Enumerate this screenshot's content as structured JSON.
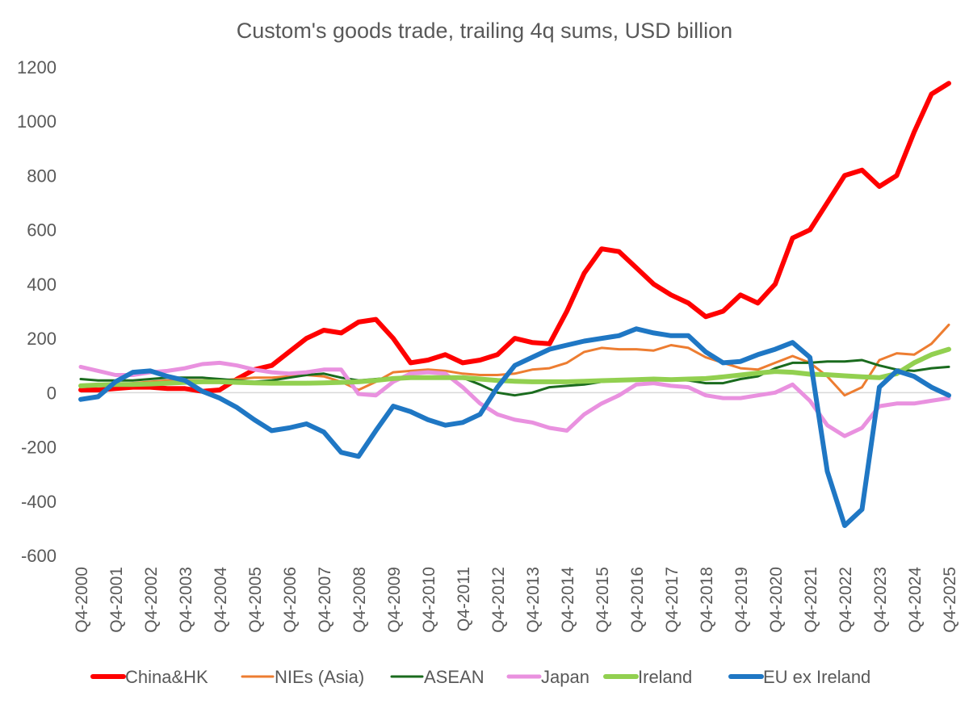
{
  "chart_data": {
    "type": "line",
    "title": "Custom's goods trade, trailing 4q sums, USD billion",
    "xlabel": "",
    "ylabel": "",
    "ylim": [
      -600,
      1200
    ],
    "y_ticks": [
      "-600",
      "-400",
      "-200",
      "0",
      "200",
      "400",
      "600",
      "800",
      "1000",
      "1200"
    ],
    "x_tick_labels": [
      "Q4-2000",
      "Q4-2001",
      "Q4-2002",
      "Q4-2003",
      "Q4-2004",
      "Q4-2005",
      "Q4-2006",
      "Q4-2007",
      "Q4-2008",
      "Q4-2009",
      "Q4-2010",
      "Q4-2011",
      "Q4-2012",
      "Q4-2013",
      "Q4-2014",
      "Q4-2015",
      "Q4-2016",
      "Q4-2017",
      "Q4-2018",
      "Q4-2019",
      "Q4-2020",
      "Q4-2021",
      "Q4-2022",
      "Q4-2023",
      "Q4-2024",
      "Q4-2025"
    ],
    "grid": false,
    "legend_position": "bottom",
    "x": [
      "Q4-2000",
      "Q2-2001",
      "Q4-2001",
      "Q2-2002",
      "Q4-2002",
      "Q2-2003",
      "Q4-2003",
      "Q2-2004",
      "Q4-2004",
      "Q2-2005",
      "Q4-2005",
      "Q2-2006",
      "Q4-2006",
      "Q2-2007",
      "Q4-2007",
      "Q2-2008",
      "Q4-2008",
      "Q2-2009",
      "Q4-2009",
      "Q2-2010",
      "Q4-2010",
      "Q2-2011",
      "Q4-2011",
      "Q2-2012",
      "Q4-2012",
      "Q2-2013",
      "Q4-2013",
      "Q2-2014",
      "Q4-2014",
      "Q2-2015",
      "Q4-2015",
      "Q2-2016",
      "Q4-2016",
      "Q2-2017",
      "Q4-2017",
      "Q2-2018",
      "Q4-2018",
      "Q2-2019",
      "Q4-2019",
      "Q2-2020",
      "Q4-2020",
      "Q2-2021",
      "Q4-2021",
      "Q2-2022",
      "Q4-2022",
      "Q2-2023",
      "Q4-2023",
      "Q2-2024",
      "Q4-2024",
      "Q2-2025",
      "Q4-2025"
    ],
    "series": [
      {
        "name": "China&HK",
        "color": "#ff0000",
        "width": 6,
        "values": [
          10,
          10,
          15,
          20,
          20,
          15,
          15,
          5,
          10,
          50,
          85,
          100,
          150,
          200,
          230,
          220,
          260,
          270,
          200,
          110,
          120,
          140,
          110,
          120,
          140,
          200,
          185,
          180,
          300,
          440,
          530,
          520,
          460,
          400,
          360,
          330,
          280,
          300,
          360,
          330,
          400,
          570,
          600,
          700,
          800,
          820,
          760,
          800,
          960,
          1100,
          1140
        ]
      },
      {
        "name": "NIEs (Asia)",
        "color": "#ed7d31",
        "width": 3,
        "values": [
          20,
          25,
          30,
          35,
          40,
          45,
          45,
          45,
          45,
          50,
          55,
          55,
          60,
          65,
          60,
          40,
          10,
          40,
          75,
          80,
          85,
          80,
          70,
          65,
          65,
          70,
          85,
          90,
          110,
          150,
          165,
          160,
          160,
          155,
          175,
          165,
          130,
          110,
          90,
          85,
          110,
          135,
          110,
          60,
          -10,
          20,
          120,
          145,
          140,
          180,
          250
        ]
      },
      {
        "name": "ASEAN",
        "color": "#1a6b1e",
        "width": 3,
        "values": [
          50,
          45,
          45,
          45,
          50,
          55,
          55,
          55,
          50,
          45,
          40,
          45,
          55,
          65,
          70,
          55,
          45,
          50,
          55,
          55,
          55,
          55,
          55,
          30,
          0,
          -10,
          0,
          20,
          25,
          30,
          40,
          45,
          45,
          50,
          50,
          45,
          35,
          35,
          50,
          60,
          90,
          110,
          110,
          115,
          115,
          120,
          100,
          85,
          80,
          90,
          95
        ]
      },
      {
        "name": "Japan",
        "color": "#e991df",
        "width": 5,
        "values": [
          95,
          80,
          65,
          65,
          75,
          80,
          90,
          105,
          110,
          100,
          85,
          75,
          70,
          75,
          85,
          85,
          -5,
          -10,
          40,
          70,
          75,
          70,
          20,
          -40,
          -80,
          -100,
          -110,
          -130,
          -140,
          -80,
          -40,
          -10,
          30,
          35,
          25,
          20,
          -10,
          -20,
          -20,
          -10,
          0,
          30,
          -30,
          -120,
          -160,
          -130,
          -50,
          -40,
          -40,
          -30,
          -20
        ]
      },
      {
        "name": "Ireland",
        "color": "#92d050",
        "width": 6,
        "values": [
          25,
          28,
          30,
          30,
          32,
          35,
          38,
          40,
          40,
          38,
          36,
          35,
          35,
          35,
          36,
          38,
          40,
          45,
          52,
          55,
          55,
          55,
          55,
          50,
          45,
          42,
          40,
          40,
          40,
          42,
          44,
          46,
          48,
          50,
          48,
          50,
          52,
          58,
          65,
          72,
          78,
          75,
          68,
          66,
          62,
          58,
          55,
          70,
          110,
          140,
          160
        ]
      },
      {
        "name": "EU ex Ireland",
        "color": "#1f77c4",
        "width": 6,
        "values": [
          -25,
          -15,
          40,
          75,
          80,
          60,
          45,
          5,
          -20,
          -55,
          -100,
          -140,
          -130,
          -115,
          -145,
          -220,
          -235,
          -140,
          -50,
          -70,
          -100,
          -120,
          -110,
          -80,
          20,
          100,
          130,
          160,
          175,
          190,
          200,
          210,
          235,
          220,
          210,
          210,
          150,
          110,
          115,
          140,
          160,
          185,
          130,
          -290,
          -490,
          -430,
          20,
          80,
          60,
          20,
          -10
        ]
      }
    ]
  }
}
